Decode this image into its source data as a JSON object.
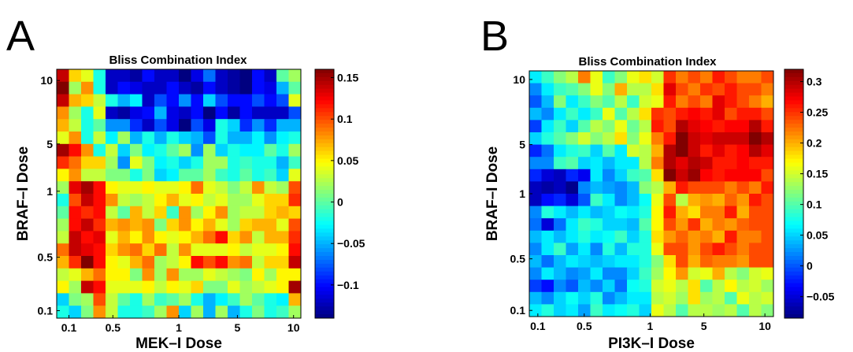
{
  "chart_data": [
    {
      "type": "heatmap",
      "panel": "A",
      "title": "Bliss Combination Index",
      "xlabel": "MEK–I Dose",
      "ylabel": "BRAF–I Dose",
      "x_ticks": [
        "0.1",
        "0.5",
        "1",
        "5",
        "10"
      ],
      "y_ticks": [
        "10",
        "5",
        "1",
        "0.5",
        "0.1"
      ],
      "colorbar_ticks": [
        "0.15",
        "0.1",
        "0.05",
        "0",
        "−0.05",
        "−0.1"
      ],
      "colorbar_values": [
        0.15,
        0.1,
        0.05,
        0,
        -0.05,
        -0.1
      ],
      "clim": [
        -0.14,
        0.16
      ],
      "colormap": "jet",
      "grid_size": [
        20,
        20
      ],
      "values": [
        [
          0.14,
          0.06,
          0.04,
          -0.02,
          -0.12,
          -0.12,
          -0.13,
          -0.1,
          -0.12,
          -0.12,
          -0.14,
          -0.11,
          -0.07,
          -0.12,
          -0.13,
          -0.14,
          -0.1,
          -0.12,
          0,
          0.02
        ],
        [
          0.16,
          0.02,
          0.08,
          -0.02,
          -0.12,
          -0.1,
          -0.11,
          -0.12,
          -0.12,
          -0.1,
          -0.12,
          -0.13,
          -0.1,
          -0.12,
          -0.13,
          -0.14,
          -0.1,
          -0.11,
          -0.05,
          0
        ],
        [
          0.14,
          0.07,
          0.06,
          0.03,
          -0.02,
          -0.05,
          -0.03,
          -0.12,
          -0.08,
          -0.1,
          -0.06,
          -0.1,
          -0.04,
          -0.08,
          -0.1,
          -0.1,
          -0.08,
          -0.1,
          -0.08,
          0.04
        ],
        [
          0.08,
          0.02,
          -0.02,
          0.04,
          -0.12,
          -0.13,
          -0.11,
          -0.1,
          -0.05,
          -0.11,
          -0.12,
          -0.1,
          -0.14,
          -0.1,
          -0.13,
          -0.1,
          -0.12,
          -0.12,
          -0.12,
          -0.08
        ],
        [
          0.07,
          0.03,
          -0.02,
          0,
          -0.06,
          -0.06,
          -0.09,
          -0.12,
          -0.08,
          -0.11,
          -0.14,
          -0.08,
          -0.11,
          -0.02,
          -0.04,
          -0.09,
          -0.06,
          -0.09,
          -0.05,
          -0.05
        ],
        [
          0.04,
          0.08,
          -0.02,
          0.03,
          -0.03,
          0.02,
          -0.05,
          -0.02,
          -0.05,
          -0.02,
          -0.04,
          -0.05,
          -0.08,
          -0.02,
          -0.05,
          -0.05,
          -0.03,
          -0.06,
          -0.03,
          -0.02
        ],
        [
          0.15,
          0.12,
          0.08,
          -0.02,
          0.03,
          -0.04,
          0.01,
          -0.03,
          -0.02,
          0,
          0.02,
          -0.06,
          0.02,
          -0.04,
          -0.02,
          -0.03,
          -0.03,
          0,
          -0.02,
          0.02
        ],
        [
          0.11,
          0.09,
          0.06,
          0.06,
          0.02,
          -0.06,
          0.04,
          0.01,
          -0.03,
          -0.02,
          -0.04,
          -0.02,
          0.02,
          0.02,
          -0.02,
          -0.01,
          -0.02,
          -0.02,
          -0.05,
          -0.01
        ],
        [
          0.05,
          0.08,
          0.03,
          0.03,
          0.01,
          0.01,
          -0.02,
          0.01,
          -0.04,
          -0.03,
          0,
          0,
          0.02,
          -0.01,
          -0.02,
          0,
          -0.02,
          -0.01,
          -0.04,
          0.04
        ],
        [
          0.02,
          0.13,
          0.15,
          0.12,
          0.05,
          0.04,
          0.04,
          0.05,
          0.04,
          0.04,
          0.05,
          0.09,
          0.04,
          0.03,
          0.01,
          0.03,
          0.08,
          0.03,
          0.02,
          0.1
        ],
        [
          -0.02,
          0.1,
          0.14,
          0.12,
          0.08,
          0.03,
          0.02,
          0.03,
          0.05,
          0.07,
          0.04,
          0.05,
          0.03,
          0.04,
          0.02,
          0.02,
          0.04,
          0.06,
          0.06,
          0.11
        ],
        [
          0,
          0.12,
          0.11,
          0.12,
          0.03,
          0,
          0.07,
          0.03,
          0.06,
          -0.01,
          0.08,
          0.02,
          0.05,
          0.08,
          0.02,
          0.03,
          0.03,
          0.06,
          0.07,
          0.06
        ],
        [
          0.02,
          0.12,
          0.14,
          0.11,
          0.07,
          0.08,
          0.07,
          0.08,
          0.01,
          0.06,
          0.08,
          0.05,
          0.07,
          0.04,
          0.02,
          0.06,
          0.07,
          0.07,
          0.04,
          0.1
        ],
        [
          0.03,
          0.14,
          0.12,
          0.13,
          0.04,
          0.07,
          0.05,
          0.08,
          0.05,
          0.04,
          0.05,
          0.07,
          0.09,
          0.12,
          0.06,
          0.08,
          0.03,
          0.07,
          0.07,
          0.11
        ],
        [
          0.09,
          0.14,
          0.13,
          0.12,
          0.06,
          0.08,
          0.09,
          0.06,
          0.09,
          0.03,
          0.08,
          0.04,
          0.04,
          0.04,
          0.05,
          0.03,
          0.04,
          0.04,
          0.05,
          0.12
        ],
        [
          0.07,
          0.11,
          0.16,
          0.12,
          0.05,
          0.04,
          0.07,
          0.09,
          0.02,
          0.03,
          0.05,
          0.12,
          0.1,
          0.12,
          0.08,
          0.09,
          0.03,
          0.06,
          0.06,
          0.14
        ],
        [
          0.03,
          0.04,
          0.07,
          0.09,
          0.05,
          0.05,
          0.01,
          0.08,
          0.02,
          0.08,
          0.02,
          0.02,
          0.04,
          0.03,
          0.02,
          0.01,
          0.05,
          0.02,
          0.05,
          0.05
        ],
        [
          0.05,
          0.02,
          0.14,
          0.12,
          0.04,
          0.04,
          0.04,
          0.05,
          0.03,
          0.05,
          0.04,
          0.06,
          0.01,
          0.01,
          0.04,
          0.02,
          0.03,
          0.04,
          0.05,
          0.15
        ],
        [
          -0.04,
          0.01,
          0.02,
          0.1,
          0.03,
          0,
          -0.02,
          0.02,
          -0.01,
          0,
          0.02,
          -0.02,
          -0.05,
          -0.03,
          -0.01,
          0.02,
          0,
          -0.02,
          -0.03,
          0.07
        ],
        [
          -0.02,
          -0.04,
          0.01,
          0.08,
          0.03,
          -0.02,
          -0.02,
          -0.01,
          0.02,
          0.08,
          -0.04,
          0.02,
          -0.05,
          0.02,
          -0.05,
          -0.02,
          0.01,
          -0.02,
          -0.01,
          0.02
        ]
      ]
    },
    {
      "type": "heatmap",
      "panel": "B",
      "title": "Bliss Combination Index",
      "xlabel": "PI3K–I Dose",
      "ylabel": "BRAF–I Dose",
      "x_ticks": [
        "0.1",
        "0.5",
        "1",
        "5",
        "10"
      ],
      "y_ticks": [
        "10",
        "5",
        "1",
        "0.5",
        "0.1"
      ],
      "colorbar_ticks": [
        "0.3",
        "0.25",
        "0.2",
        "0.15",
        "0.1",
        "0.05",
        "0",
        "−0.05"
      ],
      "colorbar_values": [
        0.3,
        0.25,
        0.2,
        0.15,
        0.1,
        0.05,
        0,
        -0.05
      ],
      "clim": [
        -0.085,
        0.32
      ],
      "colormap": "jet",
      "grid_size": [
        20,
        20
      ],
      "values": [
        [
          0.06,
          0.09,
          0.12,
          0.14,
          0.22,
          0.16,
          0.09,
          0.12,
          0.16,
          0.18,
          0.15,
          0.25,
          0.22,
          0.24,
          0.22,
          0.26,
          0.24,
          0.22,
          0.22,
          0.24
        ],
        [
          0.02,
          0.06,
          0.09,
          0.1,
          0.12,
          0.16,
          0.12,
          0.2,
          0.14,
          0.14,
          0.18,
          0.28,
          0.24,
          0.22,
          0.25,
          0.24,
          0.26,
          0.24,
          0.24,
          0.22
        ],
        [
          0,
          0.04,
          0.12,
          0.06,
          0.09,
          0.12,
          0.1,
          0.14,
          0.09,
          0.15,
          0.16,
          0.26,
          0.22,
          0.24,
          0.22,
          0.28,
          0.26,
          0.24,
          0.22,
          0.2
        ],
        [
          0.04,
          0.02,
          0.06,
          0.09,
          0.06,
          0.09,
          0.16,
          0.1,
          0.14,
          0.18,
          0.25,
          0.24,
          0.26,
          0.27,
          0.26,
          0.28,
          0.24,
          0.26,
          0.26,
          0.24
        ],
        [
          -0.01,
          0.06,
          0.09,
          0.05,
          0.1,
          0.14,
          0.12,
          0.16,
          0.11,
          0.14,
          0.26,
          0.24,
          0.3,
          0.28,
          0.27,
          0.26,
          0.27,
          0.27,
          0.3,
          0.26
        ],
        [
          0.05,
          0.08,
          0.1,
          0.12,
          0.15,
          0.12,
          0.14,
          0.18,
          0.12,
          0.16,
          0.22,
          0.26,
          0.33,
          0.29,
          0.28,
          0.29,
          0.29,
          0.29,
          0.32,
          0.3
        ],
        [
          -0.02,
          0.01,
          0.06,
          0.08,
          0.09,
          0.05,
          0.1,
          0.06,
          0.15,
          0.14,
          0.2,
          0.3,
          0.32,
          0.29,
          0.26,
          0.28,
          0.26,
          0.27,
          0.3,
          0.28
        ],
        [
          0.02,
          0.02,
          0.09,
          0.1,
          0.05,
          0.06,
          0.04,
          0.06,
          0.06,
          0.14,
          0.22,
          0.3,
          0.28,
          0.3,
          0.29,
          0.26,
          0.26,
          0.27,
          0.26,
          0.26
        ],
        [
          -0.02,
          -0.05,
          -0.06,
          -0.02,
          -0.04,
          0.06,
          0.02,
          0.05,
          0.09,
          0.1,
          0.18,
          0.32,
          0.29,
          0.31,
          0.27,
          0.26,
          0.27,
          0.27,
          0.27,
          0.24
        ],
        [
          -0.06,
          -0.07,
          -0.06,
          -0.08,
          0.02,
          0.04,
          0.03,
          0.02,
          0.04,
          0.12,
          0.14,
          0.2,
          0.26,
          0.24,
          0.24,
          0.24,
          0.22,
          0.24,
          0.22,
          0.26
        ],
        [
          -0.06,
          -0.03,
          -0.02,
          -0.05,
          0,
          0.09,
          0.06,
          0.02,
          0.04,
          0.07,
          0.16,
          0.24,
          0.14,
          0.2,
          0.21,
          0.2,
          0.23,
          0.21,
          0.26,
          0.24
        ],
        [
          0.02,
          0.08,
          0.06,
          0.04,
          0.06,
          0.04,
          0.05,
          0.07,
          0.06,
          0.08,
          0.17,
          0.26,
          0.2,
          0.18,
          0.22,
          0.22,
          0.26,
          0.2,
          0.24,
          0.24
        ],
        [
          0.01,
          -0.05,
          0.01,
          0.06,
          0.09,
          0.08,
          0.05,
          0.05,
          0.04,
          0.1,
          0.17,
          0.24,
          0.21,
          0.25,
          0.2,
          0.22,
          0.21,
          0.23,
          0.24,
          0.24
        ],
        [
          0.04,
          0.06,
          0.04,
          0.06,
          0.08,
          0.06,
          0.07,
          0.09,
          0.05,
          0.08,
          0.18,
          0.21,
          0.23,
          0.21,
          0.22,
          0.2,
          0.26,
          0.22,
          0.22,
          0.24
        ],
        [
          0.02,
          0.06,
          0.09,
          0.03,
          0.06,
          0.02,
          0.08,
          0.04,
          0.08,
          0.08,
          0.16,
          0.24,
          0.24,
          0.21,
          0.24,
          0.26,
          0.24,
          0.22,
          0.24,
          0.24
        ],
        [
          0.04,
          0.01,
          0.04,
          0.06,
          0.05,
          0.04,
          0.05,
          0.06,
          0.06,
          0.08,
          0.12,
          0.18,
          0.24,
          0.2,
          0.23,
          0.22,
          0.22,
          0.21,
          0.24,
          0.24
        ],
        [
          0.02,
          0.06,
          0.04,
          0.02,
          0.03,
          0.06,
          0.02,
          0.02,
          0.05,
          0.09,
          0.13,
          0.17,
          0.21,
          0.15,
          0.16,
          0.2,
          0.14,
          0.12,
          0.15,
          0.16
        ],
        [
          -0.01,
          -0.03,
          0.02,
          0,
          0.04,
          0.02,
          0.05,
          0.01,
          0.07,
          0.08,
          0.15,
          0.16,
          0.14,
          0.18,
          0.1,
          0.14,
          0.17,
          0.14,
          0.15,
          0.13
        ],
        [
          0.04,
          0.02,
          0.05,
          0.07,
          0.05,
          0.08,
          0.02,
          0.04,
          0.06,
          0.06,
          0.14,
          0.15,
          0.13,
          0.18,
          0.13,
          0.14,
          0.1,
          0.16,
          0.14,
          0.15
        ],
        [
          0.06,
          0.08,
          0.05,
          0.06,
          0.03,
          0.09,
          0.06,
          0.07,
          0.08,
          0.05,
          0.16,
          0.14,
          0.1,
          0.14,
          0.14,
          0.13,
          0.14,
          0.1,
          0.14,
          0.12
        ]
      ]
    }
  ]
}
